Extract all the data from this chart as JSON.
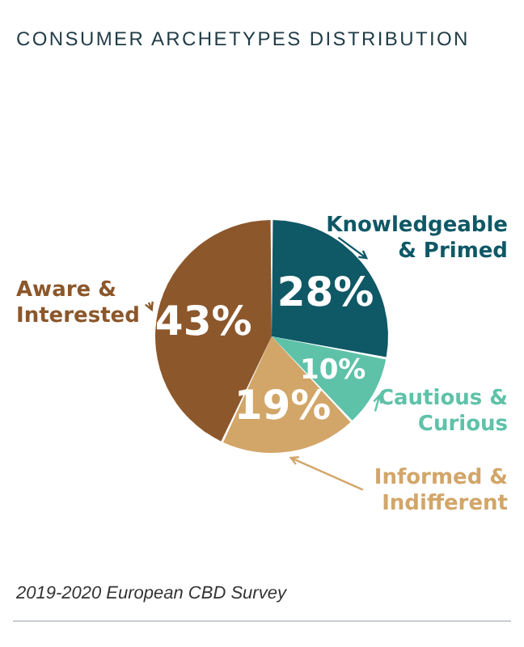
{
  "chart_data": {
    "type": "pie",
    "title": "CONSUMER ARCHETYPES DISTRIBUTION",
    "categories": [
      "Knowledgeable & Primed",
      "Cautious & Curious",
      "Informed & Indifferent",
      "Aware & Interested"
    ],
    "values": [
      28,
      10,
      19,
      43
    ],
    "colors": [
      "#0f5866",
      "#5ec2a9",
      "#d2a669",
      "#8c572b"
    ],
    "value_labels": [
      "28%",
      "10%",
      "19%",
      "43%"
    ],
    "annotations": [
      "2019-2020 European CBD Survey"
    ]
  }
}
